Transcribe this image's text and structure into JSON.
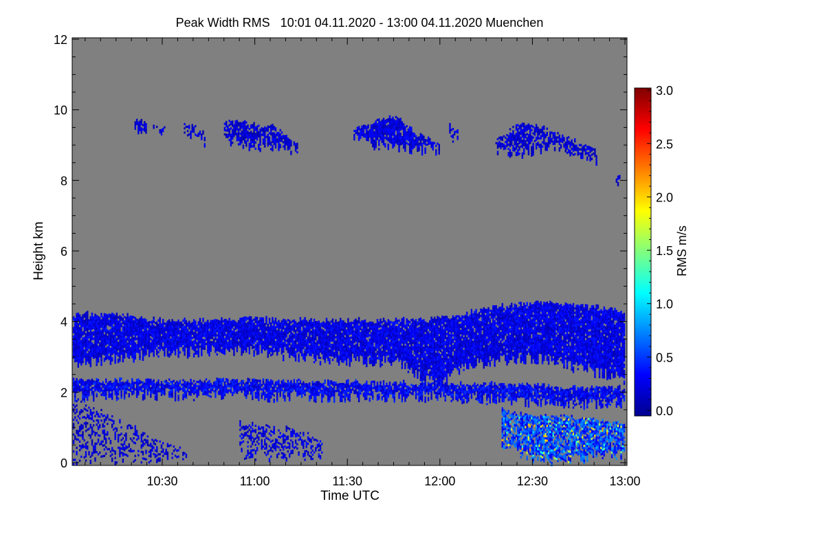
{
  "chart_data": {
    "type": "heatmap",
    "title": "Peak Width RMS   10:01 04.11.2020 - 13:00 04.11.2020 Muenchen",
    "xlabel": "Time UTC",
    "ylabel": "Height km",
    "colorbar_label": "RMS m/s",
    "xlim_minutes_after_10utc": [
      1,
      180
    ],
    "ylim": [
      0,
      12
    ],
    "x_ticks": [
      {
        "t": 30,
        "label": "10:30"
      },
      {
        "t": 60,
        "label": "11:00"
      },
      {
        "t": 90,
        "label": "11:30"
      },
      {
        "t": 120,
        "label": "12:00"
      },
      {
        "t": 150,
        "label": "12:30"
      },
      {
        "t": 180,
        "label": "13:00"
      }
    ],
    "y_ticks": [
      {
        "v": 0,
        "label": "0"
      },
      {
        "v": 2,
        "label": "2"
      },
      {
        "v": 4,
        "label": "4"
      },
      {
        "v": 6,
        "label": "6"
      },
      {
        "v": 8,
        "label": "8"
      },
      {
        "v": 10,
        "label": "10"
      },
      {
        "v": 12,
        "label": "12"
      }
    ],
    "colorbar": {
      "range": [
        0,
        3
      ],
      "ticks": [
        "0.0",
        "0.5",
        "1.0",
        "1.5",
        "2.0",
        "2.5",
        "3.0"
      ],
      "colormap": "jet"
    },
    "missing_color": "#808080",
    "layers": [
      {
        "name": "mid-level-cloud",
        "t": [
          1,
          15,
          30,
          45,
          60,
          75,
          90,
          105,
          115,
          120,
          125,
          135,
          150,
          165,
          180
        ],
        "top": [
          4.2,
          4.15,
          4.0,
          4.0,
          4.05,
          4.0,
          4.0,
          4.0,
          4.05,
          4.1,
          4.1,
          4.35,
          4.5,
          4.45,
          4.25
        ],
        "bottom": [
          2.7,
          2.9,
          3.0,
          3.1,
          3.1,
          2.9,
          2.8,
          2.8,
          2.3,
          2.1,
          2.5,
          2.8,
          2.9,
          2.6,
          2.3
        ],
        "mean_rms": 0.3,
        "fill": 0.93
      },
      {
        "name": "lower-cloud-band",
        "t": [
          1,
          30,
          60,
          90,
          120,
          140,
          160,
          180
        ],
        "top": [
          2.3,
          2.3,
          2.3,
          2.25,
          2.2,
          2.2,
          2.1,
          2.1
        ],
        "bottom": [
          1.8,
          1.85,
          1.8,
          1.8,
          1.8,
          1.7,
          1.6,
          1.6
        ],
        "mean_rms": 0.35,
        "fill": 0.9
      },
      {
        "name": "boundary-layer-clutter-early",
        "t": [
          1,
          10,
          20,
          30,
          38
        ],
        "top": [
          1.8,
          1.4,
          1.0,
          0.6,
          0.3
        ],
        "bottom": [
          0.0,
          0.0,
          0.0,
          0.1,
          0.1
        ],
        "mean_rms": 0.25,
        "fill": 0.35
      },
      {
        "name": "boundary-layer-clutter-11",
        "t": [
          55,
          65,
          75,
          82
        ],
        "top": [
          1.1,
          1.0,
          0.9,
          0.6
        ],
        "bottom": [
          0.1,
          0.1,
          0.1,
          0.1
        ],
        "mean_rms": 0.3,
        "fill": 0.45
      },
      {
        "name": "precipitation-late",
        "t": [
          140,
          150,
          160,
          170,
          180
        ],
        "top": [
          1.5,
          1.3,
          1.3,
          1.2,
          1.1
        ],
        "bottom": [
          0.5,
          0.0,
          0.0,
          0.1,
          0.2
        ],
        "mean_rms": 0.55,
        "fill": 0.8
      },
      {
        "name": "cirrus-1",
        "t": [
          21,
          25
        ],
        "top": [
          9.65,
          9.6
        ],
        "bottom": [
          9.4,
          9.35
        ],
        "mean_rms": 0.25,
        "fill": 0.9
      },
      {
        "name": "cirrus-2",
        "t": [
          27,
          31
        ],
        "top": [
          9.45,
          9.45
        ],
        "bottom": [
          9.35,
          9.35
        ],
        "mean_rms": 0.25,
        "fill": 0.9
      },
      {
        "name": "cirrus-3",
        "t": [
          37,
          44
        ],
        "top": [
          9.6,
          9.3
        ],
        "bottom": [
          9.3,
          9.0
        ],
        "mean_rms": 0.25,
        "fill": 0.7
      },
      {
        "name": "cirrus-4",
        "t": [
          50,
          58,
          66,
          74
        ],
        "top": [
          9.7,
          9.6,
          9.5,
          9.0
        ],
        "bottom": [
          9.1,
          8.9,
          8.9,
          8.75
        ],
        "mean_rms": 0.25,
        "fill": 0.75
      },
      {
        "name": "cirrus-5",
        "t": [
          92,
          100,
          106,
          112,
          120
        ],
        "top": [
          9.4,
          9.7,
          9.8,
          9.3,
          9.0
        ],
        "bottom": [
          9.2,
          8.9,
          8.9,
          8.8,
          8.8
        ],
        "mean_rms": 0.28,
        "fill": 0.9
      },
      {
        "name": "cirrus-6",
        "t": [
          123,
          126
        ],
        "top": [
          9.5,
          9.4
        ],
        "bottom": [
          9.1,
          9.1
        ],
        "mean_rms": 0.25,
        "fill": 0.6
      },
      {
        "name": "cirrus-7",
        "t": [
          138,
          146,
          155,
          163,
          171
        ],
        "top": [
          9.1,
          9.6,
          9.4,
          9.1,
          8.8
        ],
        "bottom": [
          8.8,
          8.7,
          8.9,
          8.7,
          8.5
        ],
        "mean_rms": 0.25,
        "fill": 0.75
      },
      {
        "name": "cirrus-8",
        "t": [
          177,
          180
        ],
        "top": [
          8.1,
          8.0
        ],
        "bottom": [
          7.9,
          7.9
        ],
        "mean_rms": 0.25,
        "fill": 0.8
      }
    ]
  }
}
